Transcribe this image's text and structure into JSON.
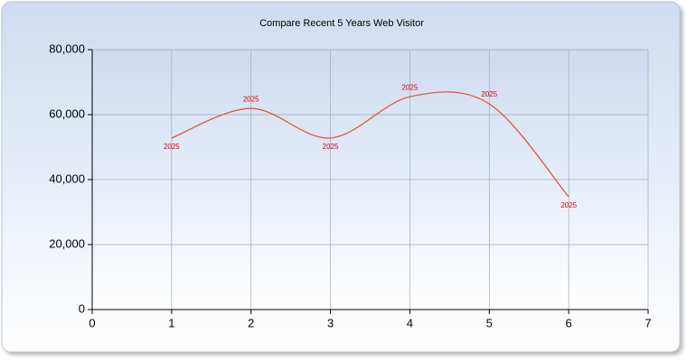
{
  "chart_data": {
    "type": "line",
    "title": "Compare Recent 5 Years Web Visitor",
    "x": [
      1,
      2,
      3,
      4,
      5,
      6
    ],
    "series": [
      {
        "name": "2025",
        "color": "#e05030",
        "values": [
          52800,
          61900,
          52800,
          65500,
          63300,
          34700
        ],
        "point_labels": [
          "2025",
          "2025",
          "2025",
          "2025",
          "2025",
          "2025"
        ]
      }
    ],
    "xlim": [
      0,
      7
    ],
    "xticks": [
      0,
      1,
      2,
      3,
      4,
      5,
      6,
      7
    ],
    "ylim": [
      0,
      80000
    ],
    "yticks": [
      0,
      {
        "value": 20000,
        "label": "20,000"
      },
      {
        "value": 40000,
        "label": "40,000"
      },
      {
        "value": 60000,
        "label": "60,000"
      },
      {
        "value": 80000,
        "label": "80,000"
      }
    ],
    "grid": true,
    "smooth": true
  }
}
